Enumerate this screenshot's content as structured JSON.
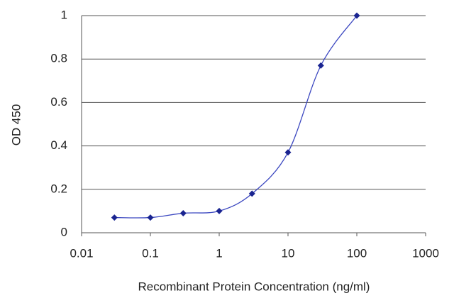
{
  "chart_data": {
    "type": "line",
    "x_label": "Recombinant Protein Concentration (ng/ml)",
    "y_label": "OD 450",
    "x": [
      0.03,
      0.1,
      0.3,
      1,
      3,
      10,
      30,
      100
    ],
    "series": [
      {
        "color": "#1a2490",
        "values": [
          0.07,
          0.07,
          0.09,
          0.1,
          0.18,
          0.37,
          0.77,
          1.0
        ]
      }
    ],
    "xlim": [
      0.01,
      1000
    ],
    "xticks": [
      0.01,
      0.1,
      1,
      10,
      100,
      1000
    ],
    "xscale": "log",
    "ylim": [
      0,
      1
    ],
    "yticks": [
      0,
      0.2,
      0.4,
      0.6,
      0.8,
      1
    ],
    "grid": true
  }
}
